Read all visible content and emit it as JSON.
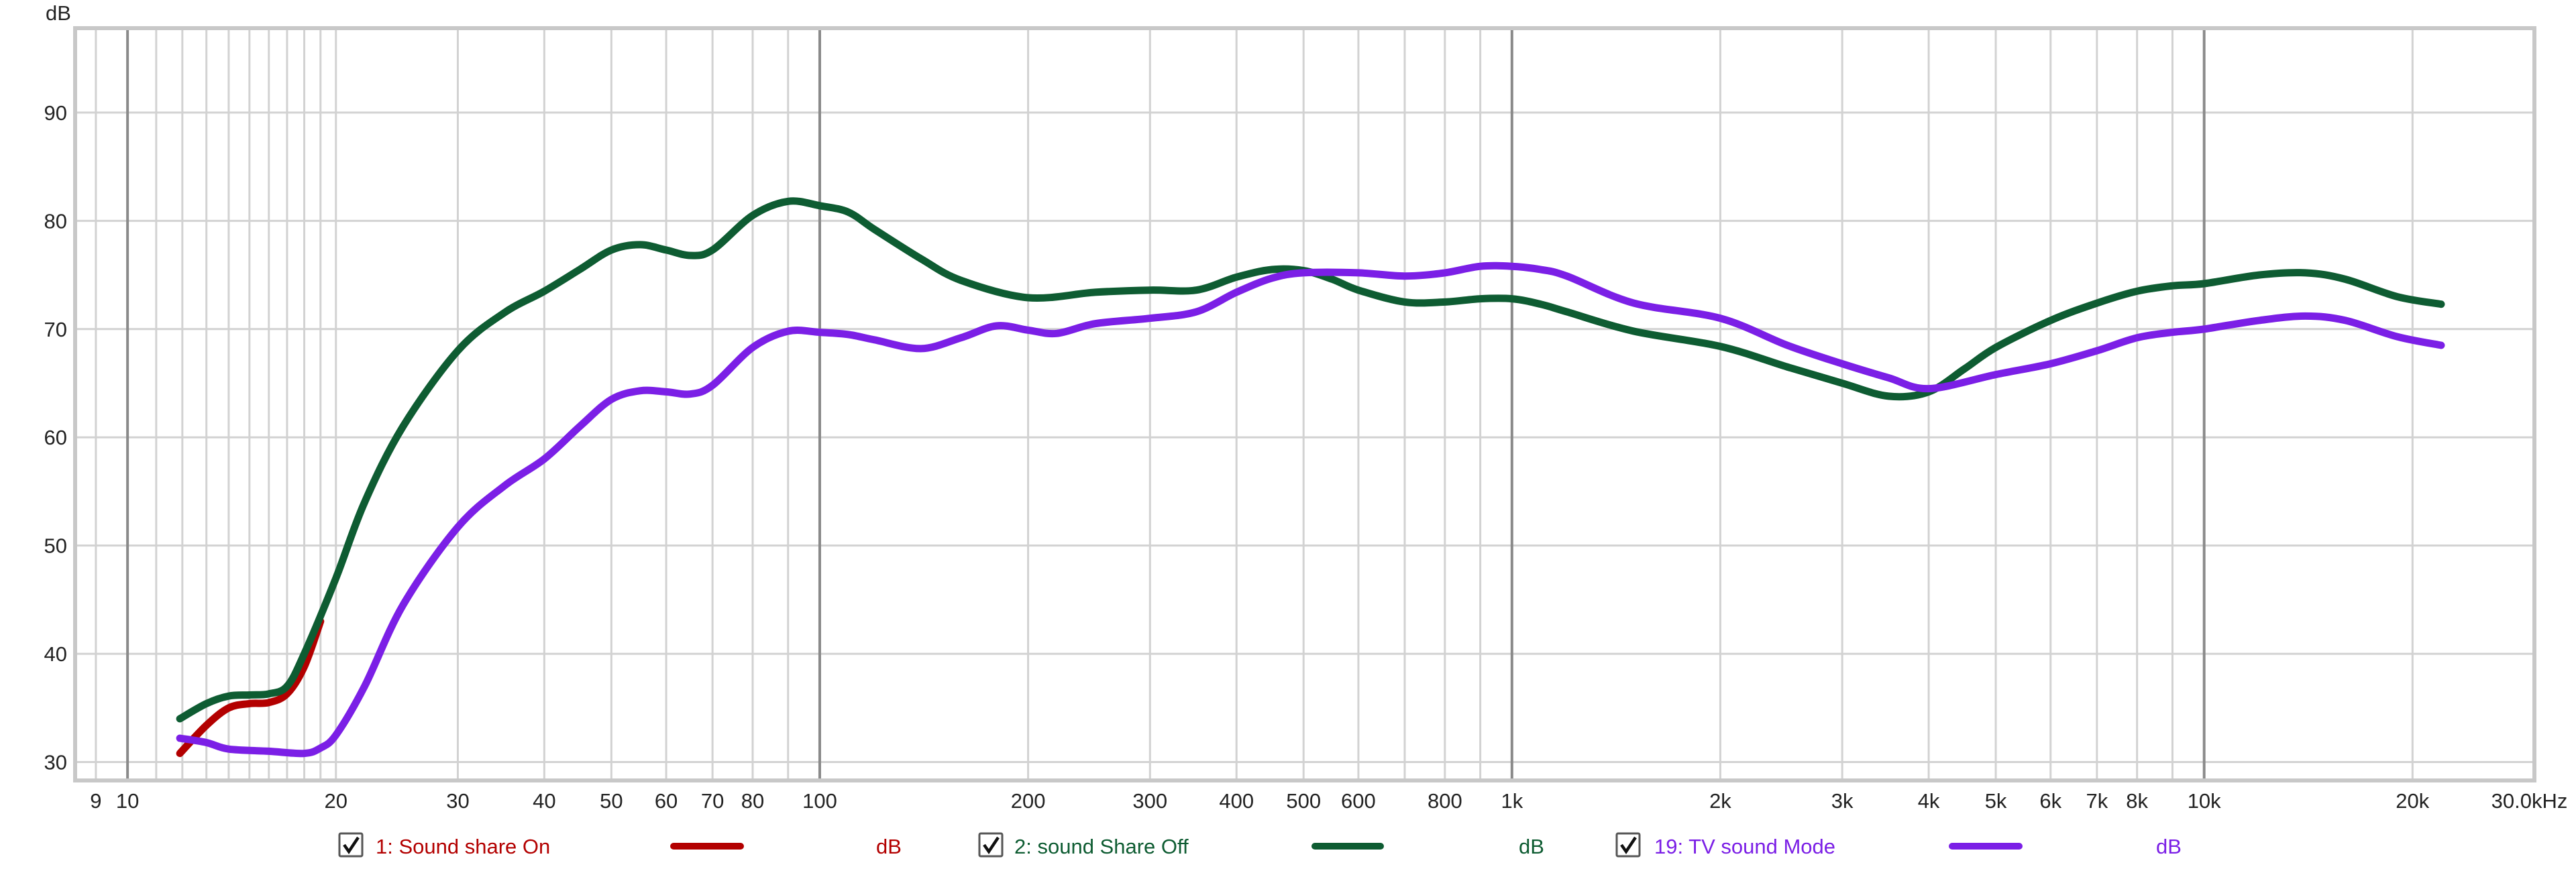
{
  "chart_data": {
    "type": "line",
    "y_unit": "dB",
    "x_scale": "log",
    "xlim": [
      8.4,
      30000
    ],
    "ylim": [
      28.3,
      97.8
    ],
    "grid": true,
    "y_ticks": [
      {
        "value": 30,
        "label": "30"
      },
      {
        "value": 40,
        "label": "40"
      },
      {
        "value": 50,
        "label": "50"
      },
      {
        "value": 60,
        "label": "60"
      },
      {
        "value": 70,
        "label": "70"
      },
      {
        "value": 80,
        "label": "80"
      },
      {
        "value": 90,
        "label": "90"
      }
    ],
    "x_ticks": [
      {
        "value": 9,
        "label": "9"
      },
      {
        "value": 10,
        "label": "10"
      },
      {
        "value": 20,
        "label": "20"
      },
      {
        "value": 30,
        "label": "30"
      },
      {
        "value": 40,
        "label": "40"
      },
      {
        "value": 50,
        "label": "50"
      },
      {
        "value": 60,
        "label": "60"
      },
      {
        "value": 70,
        "label": "70"
      },
      {
        "value": 80,
        "label": "80"
      },
      {
        "value": 100,
        "label": "100"
      },
      {
        "value": 200,
        "label": "200"
      },
      {
        "value": 300,
        "label": "300"
      },
      {
        "value": 400,
        "label": "400"
      },
      {
        "value": 500,
        "label": "500"
      },
      {
        "value": 600,
        "label": "600"
      },
      {
        "value": 800,
        "label": "800"
      },
      {
        "value": 1000,
        "label": "1k"
      },
      {
        "value": 2000,
        "label": "2k"
      },
      {
        "value": 3000,
        "label": "3k"
      },
      {
        "value": 4000,
        "label": "4k"
      },
      {
        "value": 5000,
        "label": "5k"
      },
      {
        "value": 6000,
        "label": "6k"
      },
      {
        "value": 7000,
        "label": "7k"
      },
      {
        "value": 8000,
        "label": "8k"
      },
      {
        "value": 10000,
        "label": "10k"
      },
      {
        "value": 20000,
        "label": "20k"
      },
      {
        "value": 30000,
        "label": "30.0kHz"
      }
    ],
    "x_minor_grid": [
      11,
      12,
      13,
      14,
      15,
      16,
      17,
      18,
      19,
      90,
      700,
      900,
      9000
    ],
    "x_major_grid": [
      10,
      100,
      1000,
      10000
    ],
    "series": [
      {
        "name": "1: Sound share On",
        "unit": "dB",
        "checked": true,
        "color": "#b30000",
        "points": [
          [
            11.9,
            30.8
          ],
          [
            13,
            33.4
          ],
          [
            14,
            35
          ],
          [
            15,
            35.4
          ],
          [
            16,
            35.5
          ],
          [
            17,
            36.3
          ],
          [
            18,
            38.8
          ],
          [
            19,
            43
          ]
        ]
      },
      {
        "name": "2: sound Share Off",
        "unit": "dB",
        "checked": true,
        "color": "#0e5c32",
        "points": [
          [
            11.9,
            34
          ],
          [
            13,
            35.4
          ],
          [
            14,
            36.1
          ],
          [
            15,
            36.2
          ],
          [
            16,
            36.3
          ],
          [
            17,
            37
          ],
          [
            18,
            40
          ],
          [
            20,
            47
          ],
          [
            22,
            54
          ],
          [
            25,
            61
          ],
          [
            30,
            68
          ],
          [
            35,
            71.5
          ],
          [
            40,
            73.5
          ],
          [
            45,
            75.5
          ],
          [
            50,
            77.3
          ],
          [
            55,
            77.8
          ],
          [
            60,
            77.3
          ],
          [
            65,
            76.8
          ],
          [
            70,
            77.3
          ],
          [
            80,
            80.5
          ],
          [
            90,
            81.8
          ],
          [
            100,
            81.4
          ],
          [
            110,
            80.8
          ],
          [
            120,
            79.2
          ],
          [
            140,
            76.5
          ],
          [
            160,
            74.5
          ],
          [
            200,
            72.9
          ],
          [
            250,
            73.4
          ],
          [
            300,
            73.6
          ],
          [
            350,
            73.6
          ],
          [
            400,
            74.8
          ],
          [
            450,
            75.5
          ],
          [
            500,
            75.4
          ],
          [
            550,
            74.6
          ],
          [
            600,
            73.6
          ],
          [
            700,
            72.5
          ],
          [
            800,
            72.5
          ],
          [
            900,
            72.8
          ],
          [
            1000,
            72.8
          ],
          [
            1100,
            72.3
          ],
          [
            1200,
            71.6
          ],
          [
            1500,
            69.8
          ],
          [
            2000,
            68.4
          ],
          [
            2500,
            66.5
          ],
          [
            3000,
            65
          ],
          [
            3500,
            63.8
          ],
          [
            4000,
            64.2
          ],
          [
            4500,
            66.3
          ],
          [
            5000,
            68.3
          ],
          [
            6000,
            70.8
          ],
          [
            7000,
            72.4
          ],
          [
            8000,
            73.5
          ],
          [
            9000,
            74
          ],
          [
            10000,
            74.2
          ],
          [
            12000,
            75
          ],
          [
            14000,
            75.2
          ],
          [
            16000,
            74.6
          ],
          [
            19000,
            73
          ],
          [
            22000,
            72.3
          ]
        ]
      },
      {
        "name": "19: TV sound Mode",
        "unit": "dB",
        "checked": true,
        "color": "#7b1fe6",
        "points": [
          [
            11.9,
            32.2
          ],
          [
            13,
            31.8
          ],
          [
            14,
            31.2
          ],
          [
            16,
            31
          ],
          [
            18,
            30.8
          ],
          [
            19,
            31.3
          ],
          [
            20,
            32.5
          ],
          [
            22,
            37
          ],
          [
            25,
            44.5
          ],
          [
            30,
            51.7
          ],
          [
            35,
            55.5
          ],
          [
            40,
            58
          ],
          [
            45,
            61
          ],
          [
            50,
            63.5
          ],
          [
            55,
            64.3
          ],
          [
            60,
            64.2
          ],
          [
            65,
            64
          ],
          [
            70,
            64.8
          ],
          [
            80,
            68.3
          ],
          [
            90,
            69.8
          ],
          [
            100,
            69.7
          ],
          [
            110,
            69.5
          ],
          [
            120,
            69
          ],
          [
            140,
            68.2
          ],
          [
            160,
            69.2
          ],
          [
            180,
            70.3
          ],
          [
            200,
            69.9
          ],
          [
            220,
            69.6
          ],
          [
            250,
            70.5
          ],
          [
            300,
            71
          ],
          [
            350,
            71.6
          ],
          [
            400,
            73.4
          ],
          [
            450,
            74.7
          ],
          [
            500,
            75.2
          ],
          [
            600,
            75.2
          ],
          [
            700,
            74.9
          ],
          [
            800,
            75.2
          ],
          [
            900,
            75.8
          ],
          [
            1000,
            75.8
          ],
          [
            1100,
            75.5
          ],
          [
            1200,
            74.9
          ],
          [
            1500,
            72.4
          ],
          [
            2000,
            71
          ],
          [
            2500,
            68.5
          ],
          [
            3000,
            66.8
          ],
          [
            3500,
            65.5
          ],
          [
            4000,
            64.5
          ],
          [
            5000,
            65.8
          ],
          [
            6000,
            66.8
          ],
          [
            7000,
            68
          ],
          [
            8000,
            69.2
          ],
          [
            9000,
            69.7
          ],
          [
            10000,
            70
          ],
          [
            12000,
            70.8
          ],
          [
            14000,
            71.2
          ],
          [
            16000,
            70.8
          ],
          [
            19000,
            69.3
          ],
          [
            22000,
            68.5
          ]
        ]
      }
    ]
  }
}
